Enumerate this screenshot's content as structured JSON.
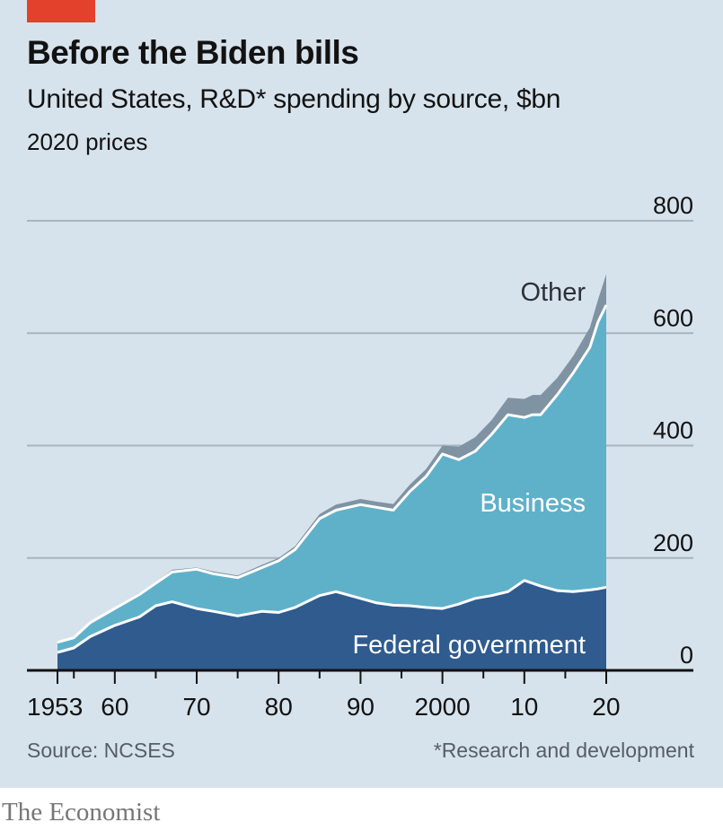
{
  "header": {
    "title": "Before the Biden bills",
    "subtitle": "United States, R&D* spending by source, $bn",
    "unit_note": "2020 prices"
  },
  "footer": {
    "source": "Source: NCSES",
    "footnote": "*Research and development",
    "brand": "The Economist"
  },
  "colors": {
    "background": "#d7e3ec",
    "federal": "#2f5b8f",
    "business": "#5fb1c9",
    "other": "#7f93a3",
    "accent_tag": "#e3412b",
    "gridline": "#a9b4bd"
  },
  "chart_data": {
    "type": "area",
    "stacked": true,
    "title": "Before the Biden bills",
    "subtitle": "United States, R&D* spending by source, $bn",
    "note": "2020 prices",
    "xlabel": "",
    "ylabel": "$bn",
    "xlim": [
      1953,
      2020
    ],
    "ylim": [
      0,
      800
    ],
    "y_ticks": [
      0,
      200,
      400,
      600,
      800
    ],
    "y_tick_labels": [
      "0",
      "200",
      "400",
      "600",
      "800"
    ],
    "y_axis_side": "right",
    "x_ticks_major": [
      1953,
      1960,
      1970,
      1980,
      1990,
      2000,
      2010,
      2020
    ],
    "x_tick_labels": [
      "1953",
      "60",
      "70",
      "80",
      "90",
      "2000",
      "10",
      "20"
    ],
    "x_ticks_minor": [
      1955,
      1965,
      1975,
      1985,
      1995,
      2005,
      2015
    ],
    "grid": true,
    "series_labels_inline": true,
    "x": [
      1953,
      1955,
      1957,
      1960,
      1963,
      1965,
      1967,
      1970,
      1972,
      1975,
      1978,
      1980,
      1982,
      1985,
      1987,
      1990,
      1992,
      1994,
      1996,
      1998,
      2000,
      2002,
      2004,
      2006,
      2008,
      2010,
      2011,
      2012,
      2014,
      2016,
      2018,
      2019,
      2020
    ],
    "series": [
      {
        "name": "Federal government",
        "values": [
          32,
          40,
          60,
          80,
          95,
          115,
          122,
          110,
          105,
          97,
          105,
          103,
          112,
          133,
          140,
          128,
          120,
          116,
          115,
          112,
          110,
          118,
          128,
          133,
          140,
          160,
          155,
          150,
          142,
          140,
          143,
          145,
          148
        ]
      },
      {
        "name": "Business",
        "values": [
          18,
          18,
          25,
          30,
          40,
          40,
          53,
          70,
          67,
          68,
          78,
          92,
          103,
          137,
          145,
          167,
          170,
          169,
          203,
          233,
          275,
          257,
          262,
          287,
          315,
          290,
          300,
          305,
          348,
          390,
          432,
          475,
          502
        ]
      },
      {
        "name": "Other",
        "values": [
          0,
          1,
          2,
          2,
          3,
          3,
          4,
          3,
          4,
          4,
          5,
          5,
          6,
          8,
          10,
          10,
          10,
          11,
          12,
          13,
          15,
          23,
          25,
          25,
          30,
          33,
          35,
          35,
          30,
          30,
          35,
          40,
          55
        ]
      }
    ],
    "legend": "inline"
  }
}
